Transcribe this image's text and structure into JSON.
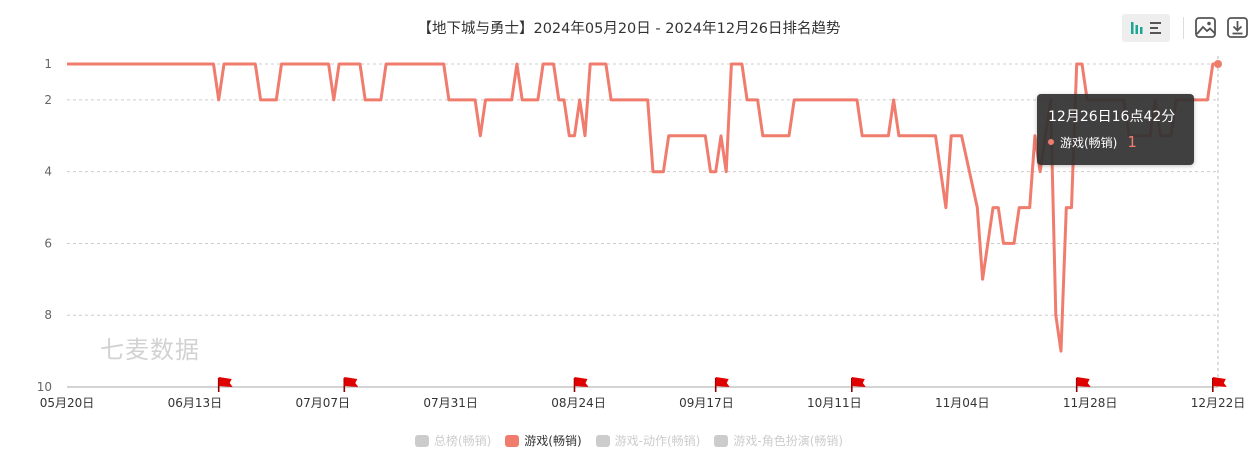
{
  "title": "【地下城与勇士】2024年05月20日 - 2024年12月26日排名趋势",
  "colors": {
    "series": "#f07c6e",
    "inactive": "#cccccc",
    "flag": "#e00000",
    "toolbar_active": "#1aa594"
  },
  "toolbar": {
    "buttons": [
      {
        "name": "chart-type-icon"
      },
      {
        "name": "save-image-icon"
      },
      {
        "name": "download-icon"
      }
    ]
  },
  "watermark": "七麦数据",
  "tooltip": {
    "title": "12月26日16点42分",
    "series": "游戏(畅销)",
    "value": "1"
  },
  "legend": [
    {
      "label": "总榜(畅销)",
      "active": false
    },
    {
      "label": "游戏(畅销)",
      "active": true
    },
    {
      "label": "游戏-动作(畅销)",
      "active": false
    },
    {
      "label": "游戏-角色扮演(畅销)",
      "active": false
    }
  ],
  "chart_data": {
    "type": "line",
    "x_start": "2024-05-20",
    "x_end": "2024-12-26",
    "x_ticks": [
      "05月20日",
      "06月13日",
      "07月07日",
      "07月31日",
      "08月24日",
      "09月17日",
      "10月11日",
      "11月04日",
      "11月28日",
      "12月22日"
    ],
    "y_ticks": [
      1,
      2,
      4,
      6,
      8,
      10
    ],
    "ylim": [
      1,
      10
    ],
    "y_inverted": true,
    "grid": true,
    "legend_position": "bottom",
    "flag_dates": [
      "2024-06-18",
      "2024-07-12",
      "2024-08-25",
      "2024-09-21",
      "2024-10-17",
      "2024-11-29",
      "2024-12-25"
    ],
    "series": [
      {
        "name": "游戏(畅销)",
        "points": [
          [
            "2024-05-20",
            1
          ],
          [
            "2024-06-17",
            1
          ],
          [
            "2024-06-18",
            2
          ],
          [
            "2024-06-19",
            1
          ],
          [
            "2024-06-25",
            1
          ],
          [
            "2024-06-26",
            2
          ],
          [
            "2024-06-29",
            2
          ],
          [
            "2024-06-30",
            1
          ],
          [
            "2024-07-09",
            1
          ],
          [
            "2024-07-10",
            2
          ],
          [
            "2024-07-11",
            1
          ],
          [
            "2024-07-15",
            1
          ],
          [
            "2024-07-16",
            2
          ],
          [
            "2024-07-19",
            2
          ],
          [
            "2024-07-20",
            1
          ],
          [
            "2024-07-31",
            1
          ],
          [
            "2024-08-01",
            2
          ],
          [
            "2024-08-06",
            2
          ],
          [
            "2024-08-07",
            3
          ],
          [
            "2024-08-08",
            2
          ],
          [
            "2024-08-13",
            2
          ],
          [
            "2024-08-14",
            1
          ],
          [
            "2024-08-15",
            2
          ],
          [
            "2024-08-18",
            2
          ],
          [
            "2024-08-19",
            1
          ],
          [
            "2024-08-21",
            1
          ],
          [
            "2024-08-22",
            2
          ],
          [
            "2024-08-23",
            2
          ],
          [
            "2024-08-24",
            3
          ],
          [
            "2024-08-25",
            3
          ],
          [
            "2024-08-26",
            2
          ],
          [
            "2024-08-27",
            3
          ],
          [
            "2024-08-28",
            1
          ],
          [
            "2024-08-31",
            1
          ],
          [
            "2024-09-01",
            2
          ],
          [
            "2024-09-08",
            2
          ],
          [
            "2024-09-09",
            4
          ],
          [
            "2024-09-11",
            4
          ],
          [
            "2024-09-12",
            3
          ],
          [
            "2024-09-19",
            3
          ],
          [
            "2024-09-20",
            4
          ],
          [
            "2024-09-21",
            4
          ],
          [
            "2024-09-22",
            3
          ],
          [
            "2024-09-23",
            4
          ],
          [
            "2024-09-24",
            1
          ],
          [
            "2024-09-26",
            1
          ],
          [
            "2024-09-27",
            2
          ],
          [
            "2024-09-29",
            2
          ],
          [
            "2024-09-30",
            3
          ],
          [
            "2024-10-05",
            3
          ],
          [
            "2024-10-06",
            2
          ],
          [
            "2024-10-18",
            2
          ],
          [
            "2024-10-19",
            3
          ],
          [
            "2024-10-24",
            3
          ],
          [
            "2024-10-25",
            2
          ],
          [
            "2024-10-26",
            3
          ],
          [
            "2024-11-02",
            3
          ],
          [
            "2024-11-04",
            5
          ],
          [
            "2024-11-05",
            3
          ],
          [
            "2024-11-07",
            3
          ],
          [
            "2024-11-10",
            5
          ],
          [
            "2024-11-11",
            7
          ],
          [
            "2024-11-13",
            5
          ],
          [
            "2024-11-14",
            5
          ],
          [
            "2024-11-15",
            6
          ],
          [
            "2024-11-17",
            6
          ],
          [
            "2024-11-18",
            5
          ],
          [
            "2024-11-20",
            5
          ],
          [
            "2024-11-21",
            3
          ],
          [
            "2024-11-22",
            4
          ],
          [
            "2024-11-24",
            2
          ],
          [
            "2024-11-25",
            8
          ],
          [
            "2024-11-26",
            9
          ],
          [
            "2024-11-27",
            5
          ],
          [
            "2024-11-28",
            5
          ],
          [
            "2024-11-29",
            1
          ],
          [
            "2024-11-30",
            1
          ],
          [
            "2024-12-01",
            2
          ],
          [
            "2024-12-08",
            2
          ],
          [
            "2024-12-09",
            3
          ],
          [
            "2024-12-13",
            3
          ],
          [
            "2024-12-14",
            2
          ],
          [
            "2024-12-15",
            3
          ],
          [
            "2024-12-17",
            3
          ],
          [
            "2024-12-18",
            2
          ],
          [
            "2024-12-24",
            2
          ],
          [
            "2024-12-25",
            1
          ],
          [
            "2024-12-26",
            1
          ]
        ]
      }
    ]
  }
}
